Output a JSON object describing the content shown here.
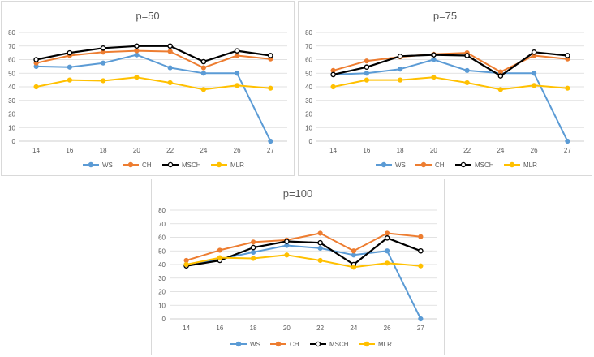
{
  "chart_data": [
    {
      "type": "line",
      "title": "p=50",
      "categories": [
        "14",
        "16",
        "18",
        "20",
        "22",
        "24",
        "26",
        "27"
      ],
      "ylim": [
        0,
        80
      ],
      "yticks": [
        0,
        10,
        20,
        30,
        40,
        50,
        60,
        70,
        80
      ],
      "grid": true,
      "legend": "bottom",
      "series": [
        {
          "name": "WS",
          "color": "#5b9bd5",
          "marker": "filled",
          "values": [
            55,
            54.5,
            57.5,
            63.5,
            54,
            50,
            50,
            0
          ]
        },
        {
          "name": "CH",
          "color": "#ed7d31",
          "marker": "filled",
          "values": [
            57.5,
            63,
            65.5,
            66.5,
            66,
            54,
            63,
            60.5
          ]
        },
        {
          "name": "MSCH",
          "color": "#000000",
          "marker": "hollow",
          "values": [
            60,
            65,
            68.5,
            70,
            70,
            58.5,
            66.5,
            63
          ]
        },
        {
          "name": "MLR",
          "color": "#ffc000",
          "marker": "filled",
          "values": [
            40,
            45,
            44.5,
            47,
            43,
            38,
            41,
            39
          ]
        }
      ]
    },
    {
      "type": "line",
      "title": "p=75",
      "categories": [
        "14",
        "16",
        "18",
        "20",
        "22",
        "24",
        "26",
        "27"
      ],
      "ylim": [
        0,
        80
      ],
      "yticks": [
        0,
        10,
        20,
        30,
        40,
        50,
        60,
        70,
        80
      ],
      "grid": true,
      "legend": "bottom",
      "series": [
        {
          "name": "WS",
          "color": "#5b9bd5",
          "marker": "filled",
          "values": [
            49,
            50,
            53,
            60,
            52,
            50,
            50,
            0
          ]
        },
        {
          "name": "CH",
          "color": "#ed7d31",
          "marker": "filled",
          "values": [
            52,
            59,
            62,
            64,
            65,
            51,
            63,
            60.5
          ]
        },
        {
          "name": "MSCH",
          "color": "#000000",
          "marker": "hollow",
          "values": [
            49,
            54.5,
            62.5,
            63.5,
            63,
            48,
            65.5,
            63
          ]
        },
        {
          "name": "MLR",
          "color": "#ffc000",
          "marker": "filled",
          "values": [
            40,
            45,
            45,
            47,
            43,
            38,
            41,
            39
          ]
        }
      ]
    },
    {
      "type": "line",
      "title": "p=100",
      "categories": [
        "14",
        "16",
        "18",
        "20",
        "22",
        "24",
        "26",
        "27"
      ],
      "ylim": [
        0,
        80
      ],
      "yticks": [
        0,
        10,
        20,
        30,
        40,
        50,
        60,
        70,
        80
      ],
      "grid": true,
      "legend": "bottom",
      "series": [
        {
          "name": "WS",
          "color": "#5b9bd5",
          "marker": "filled",
          "values": [
            40,
            44,
            49,
            54,
            52,
            47,
            50,
            0
          ]
        },
        {
          "name": "CH",
          "color": "#ed7d31",
          "marker": "filled",
          "values": [
            43,
            50.5,
            56.5,
            58,
            63,
            50,
            63,
            60.5
          ]
        },
        {
          "name": "MSCH",
          "color": "#000000",
          "marker": "hollow",
          "values": [
            39,
            43,
            52.5,
            57,
            56,
            40,
            59.5,
            50
          ]
        },
        {
          "name": "MLR",
          "color": "#ffc000",
          "marker": "filled",
          "values": [
            40,
            45,
            44.5,
            47,
            43,
            38,
            41,
            39
          ]
        }
      ]
    }
  ]
}
